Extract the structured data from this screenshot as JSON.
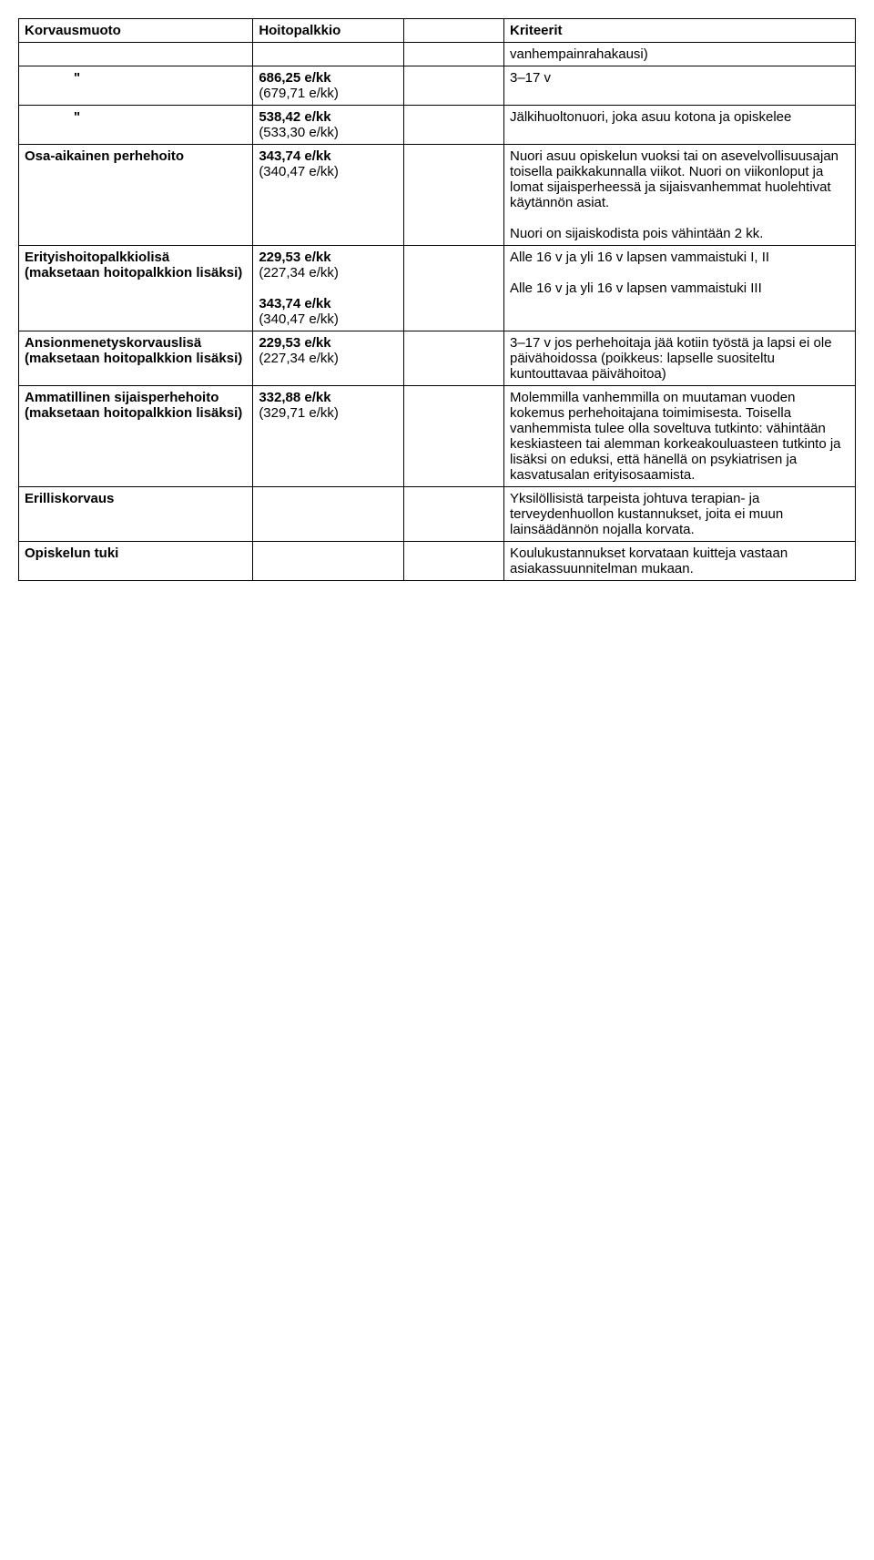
{
  "table": {
    "columns": [
      "Korvausmuoto",
      "Hoitopalkkio",
      "",
      "Kriteerit"
    ],
    "rows": [
      {
        "c1": "",
        "c2": "",
        "c3": "",
        "c4": "vanhempainrahakausi)"
      },
      {
        "c1_ditto": "\"",
        "c2_line1": "686,25 e/kk",
        "c2_line2": "(679,71 e/kk)",
        "c3": "",
        "c4": "3–17 v"
      },
      {
        "c1_ditto": "\"",
        "c2_line1": "538,42 e/kk",
        "c2_line2": "(533,30 e/kk)",
        "c3": "",
        "c4": "Jälkihuoltonuori, joka asuu kotona ja opiskelee"
      },
      {
        "c1": "Osa-aikainen perhehoito",
        "c2_line1": "343,74 e/kk",
        "c2_line2": "(340,47 e/kk)",
        "c3": "",
        "c4_para1": "Nuori asuu opiskelun vuoksi tai on asevelvollisuusajan toisella paikkakunnalla viikot. Nuori on viikonloput ja lomat sijaisperheessä ja sijaisvanhemmat huolehtivat käytännön asiat.",
        "c4_para2": "Nuori on sijaiskodista pois vähintään 2 kk."
      },
      {
        "c1": "Erityishoitopalkkiolisä (maksetaan hoitopalkkion lisäksi)",
        "c2a_line1": "229,53 e/kk",
        "c2a_line2": "(227,34 e/kk)",
        "c2b_line1": "343,74 e/kk",
        "c2b_line2": "(340,47 e/kk)",
        "c3": "",
        "c4_para1": "Alle 16 v ja yli 16 v lapsen vammaistuki I, II",
        "c4_para2": "Alle 16 v ja yli 16 v lapsen vammaistuki III"
      },
      {
        "c1": "Ansionmenetyskorvauslisä (maksetaan hoitopalkkion lisäksi)",
        "c2_line1": "229,53 e/kk",
        "c2_line2": "(227,34 e/kk)",
        "c3": "",
        "c4": "3–17 v jos perhehoitaja jää kotiin työstä ja lapsi ei ole päivähoidossa (poikkeus: lapselle suositeltu kuntouttavaa päivähoitoa)"
      },
      {
        "c1": "Ammatillinen sijaisperhehoito (maksetaan hoitopalkkion lisäksi)",
        "c2_line1": "332,88 e/kk",
        "c2_line2": "(329,71 e/kk)",
        "c3": "",
        "c4": "Molemmilla vanhemmilla on muutaman vuoden kokemus perhehoitajana toimimisesta. Toisella vanhemmista tulee olla soveltuva tutkinto: vähintään keskiasteen tai alemman korkeakouluasteen tutkinto ja lisäksi on eduksi, että hänellä on psykiatrisen ja kasvatusalan erityisosaamista."
      },
      {
        "c1": "Erilliskorvaus",
        "c2": "",
        "c3": "",
        "c4": "Yksilöllisistä tarpeista johtuva terapian- ja terveydenhuollon kustannukset, joita ei muun lainsäädännön nojalla korvata."
      },
      {
        "c1": "Opiskelun tuki",
        "c2": "",
        "c3": "",
        "c4": "Koulukustannukset korvataan kuitteja vastaan asiakassuunnitelman mukaan."
      }
    ]
  }
}
